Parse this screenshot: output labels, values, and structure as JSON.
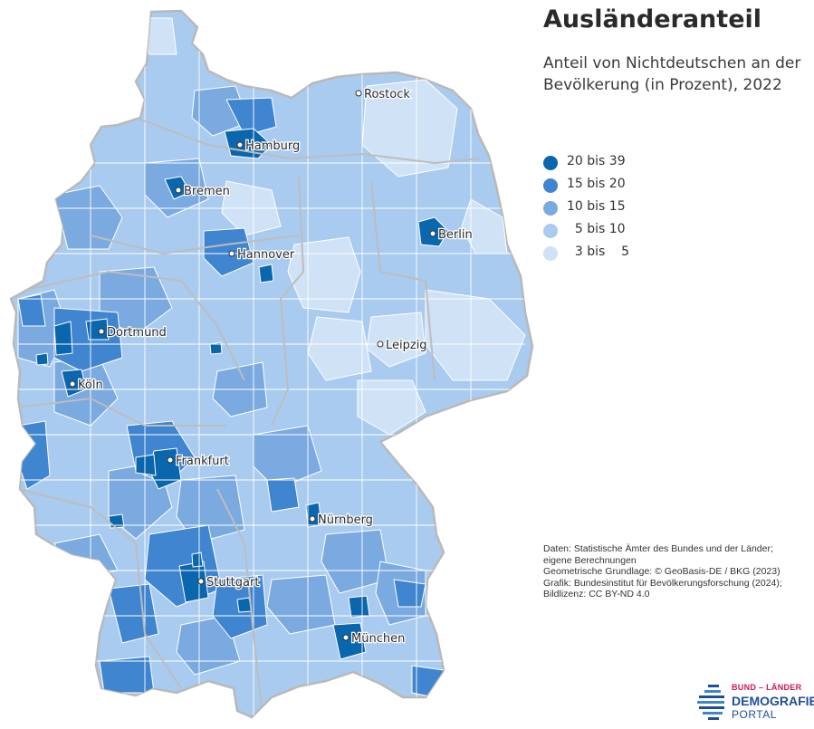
{
  "title": "Ausländeranteil",
  "subtitle": "Anteil von Nichtdeutschen an der Bevölkerung (in Prozent), 2022",
  "legend": [
    {
      "label": "20 bis 39",
      "color": "#0a66ad"
    },
    {
      "label": "15 bis 20",
      "color": "#3f85cf"
    },
    {
      "label": "10 bis 15",
      "color": "#7aaae0"
    },
    {
      "label": "  5 bis 10",
      "color": "#a9cbef"
    },
    {
      "label": "  3 bis    5",
      "color": "#cfe2f6"
    }
  ],
  "cities": [
    {
      "name": "Rostock"
    },
    {
      "name": "Hamburg"
    },
    {
      "name": "Bremen"
    },
    {
      "name": "Berlin"
    },
    {
      "name": "Hannover"
    },
    {
      "name": "Dortmund"
    },
    {
      "name": "Leipzig"
    },
    {
      "name": "Köln"
    },
    {
      "name": "Frankfurt"
    },
    {
      "name": "Nürnberg"
    },
    {
      "name": "Stuttgart"
    },
    {
      "name": "München"
    }
  ],
  "sources": {
    "line1": "Daten: Statistische Ämter des Bundes und der Länder;",
    "line2": "eigene Berechnungen",
    "line3": "Geometrische Grundlage: © GeoBasis-DE / BKG (2023)",
    "line4": "Grafik: Bundesinstitut für Bevölkerungsforschung (2024);",
    "line5": "Bildlizenz: CC BY-ND 4.0"
  },
  "logo": {
    "top": "BUND – LÄNDER",
    "main": "DEMOGRAFIE",
    "sub": "PORTAL"
  }
}
